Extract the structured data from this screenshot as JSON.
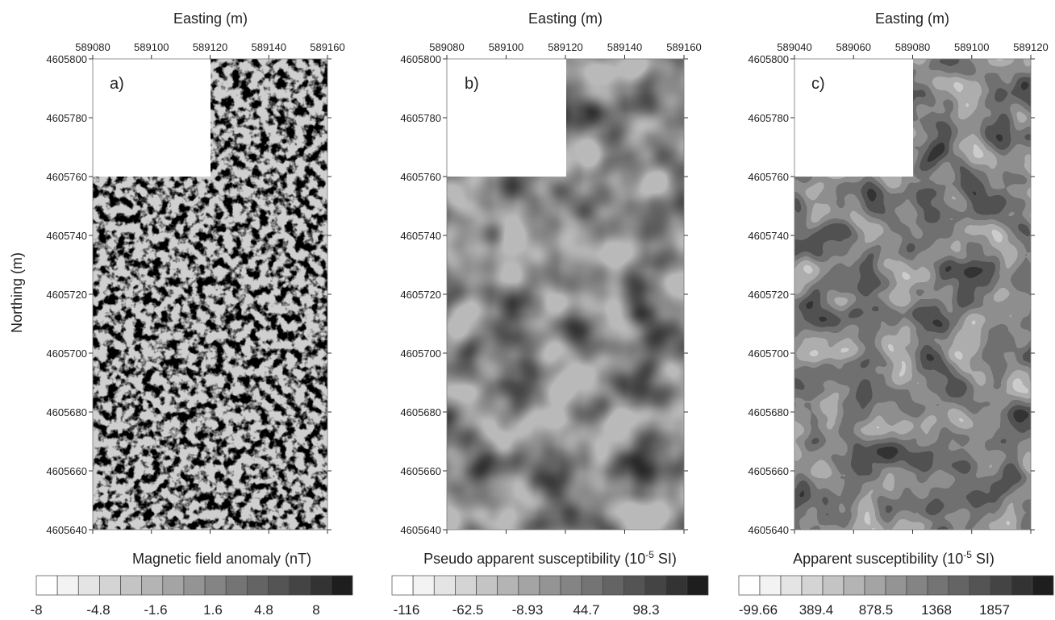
{
  "y_axis_label": "Northing (m)",
  "panels": [
    {
      "tag": "a)",
      "x_label": "Easting (m)",
      "x_ticks": [
        "589080",
        "589100",
        "589120",
        "589140",
        "589160"
      ],
      "y_ticks": [
        "4605800",
        "4605780",
        "4605760",
        "4605740",
        "4605720",
        "4605700",
        "4605680",
        "4605660",
        "4605640"
      ],
      "colorbar_title": "Magnetic field anomaly (nT)",
      "colorbar_prefix": "",
      "colorbar_unit_tail": "",
      "colorbar_values": [
        "-8",
        "-4.8",
        "-1.6",
        "1.6",
        "4.8",
        "8"
      ]
    },
    {
      "tag": "b)",
      "x_label": "Easting (m)",
      "x_ticks": [
        "589080",
        "589100",
        "589120",
        "589140",
        "589160"
      ],
      "y_ticks": [
        "4605800",
        "4605780",
        "4605760",
        "4605740",
        "4605720",
        "4605700",
        "4605680",
        "4605660",
        "4605640"
      ],
      "colorbar_title": "Pseudo apparent susceptibility (10",
      "colorbar_exponent": "-5",
      "colorbar_unit_tail": " SI)",
      "colorbar_values": [
        "-116",
        "-62.5",
        "-8.93",
        "44.7",
        "98.3"
      ]
    },
    {
      "tag": "c)",
      "x_label": "Easting (m)",
      "x_ticks": [
        "589040",
        "589060",
        "589080",
        "589100",
        "589120"
      ],
      "y_ticks": [
        "4605800",
        "4605780",
        "4605760",
        "4605740",
        "4605720",
        "4605700",
        "4605680",
        "4605660",
        "4605640"
      ],
      "colorbar_title": "Apparent susceptibility (10",
      "colorbar_exponent": "-5",
      "colorbar_unit_tail": " SI)",
      "colorbar_values": [
        "-99.66",
        "389.4",
        "878.5",
        "1368",
        "1857"
      ]
    }
  ],
  "colors": {
    "scale": [
      "#ffffff",
      "#f3f3f3",
      "#e4e4e4",
      "#d4d4d4",
      "#c4c4c4",
      "#b4b4b4",
      "#a4a4a4",
      "#949494",
      "#848484",
      "#747474",
      "#646464",
      "#545454",
      "#444444",
      "#333333",
      "#1e1e1e"
    ]
  }
}
